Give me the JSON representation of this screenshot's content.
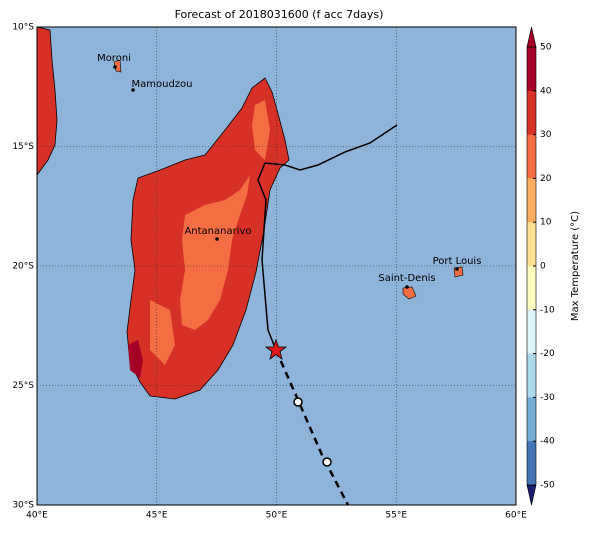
{
  "title": "Forecast of 2018031600 (f acc 7days)",
  "map": {
    "lat_labels": [
      "10°S",
      "15°S",
      "20°S",
      "25°S",
      "30°S"
    ],
    "lon_labels": [
      "40°E",
      "45°E",
      "50°E",
      "55°E",
      "60°E"
    ],
    "cities": [
      "Moroni",
      "Mamoudzou",
      "Antananarivo",
      "Saint-Denis",
      "Port Louis"
    ]
  },
  "colorbar": {
    "label": "Max Temperature (°C)",
    "ticks": [
      50,
      40,
      30,
      20,
      10,
      0,
      -10,
      -20,
      -30,
      -40,
      -50
    ],
    "colors": [
      "#a50026",
      "#d73027",
      "#f46d43",
      "#fdae61",
      "#fee090",
      "#ffffbf",
      "#e0f3f8",
      "#abd9e9",
      "#74add1",
      "#4575b4",
      "#313695",
      "#1a1a6e"
    ]
  }
}
